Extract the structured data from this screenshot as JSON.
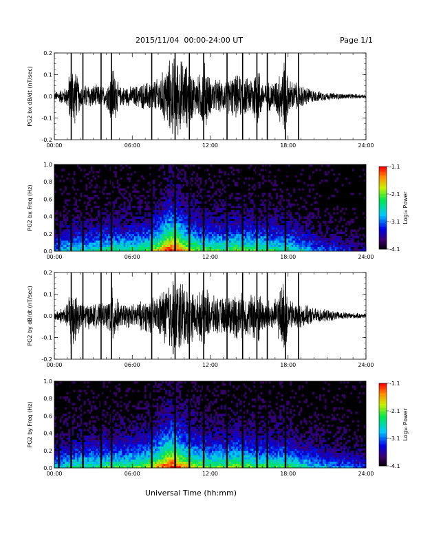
{
  "header": {
    "title": "2015/11/04  00:00-24:00 UT",
    "page": "Page 1/1"
  },
  "colors": {
    "trace": "#000000",
    "spectro_background": "#000000"
  },
  "chart_data": [
    {
      "type": "line",
      "name": "bx-waveform",
      "ylabel": "PG2 bx dB/dt (nT/sec)",
      "xlabel": "",
      "xlim": [
        0,
        24
      ],
      "ylim": [
        -0.2,
        0.2
      ],
      "x_ticks": [
        "00:00",
        "06:00",
        "12:00",
        "18:00",
        "24:00"
      ],
      "y_ticks": [
        "-0.2",
        "-0.1",
        "0.0",
        "0.1",
        "0.2"
      ],
      "y_tick_values": [
        -0.2,
        -0.1,
        0.0,
        0.1,
        0.2
      ],
      "envelope_hours": [
        0,
        1,
        1.3,
        2,
        3,
        4,
        4.5,
        5,
        6,
        7,
        8,
        8.5,
        9,
        9.5,
        10,
        11,
        11.6,
        12,
        13,
        14,
        15,
        15.7,
        16,
        17,
        17.8,
        18,
        19,
        20,
        21,
        22,
        23,
        24
      ],
      "envelope_amplitude": [
        0.02,
        0.05,
        0.19,
        0.06,
        0.06,
        0.05,
        0.17,
        0.05,
        0.05,
        0.07,
        0.09,
        0.14,
        0.2,
        0.2,
        0.18,
        0.09,
        0.18,
        0.09,
        0.08,
        0.11,
        0.09,
        0.17,
        0.07,
        0.08,
        0.2,
        0.09,
        0.06,
        0.03,
        0.02,
        0.015,
        0.012,
        0.01
      ],
      "spike_hours": [
        1.3,
        2.2,
        3.6,
        4.4,
        7.5,
        9.3,
        10.4,
        11.5,
        13.3,
        14.5,
        15.6,
        16.4,
        17.8,
        18.8
      ]
    },
    {
      "type": "heatmap",
      "name": "bx-spectrogram",
      "ylabel": "PG2 bx Freq (Hz)",
      "xlabel": "",
      "xlim": [
        0,
        24
      ],
      "ylim": [
        0,
        1
      ],
      "x_ticks": [
        "00:00",
        "06:00",
        "12:00",
        "18:00",
        "24:00"
      ],
      "y_ticks": [
        "0.0",
        "0.2",
        "0.4",
        "0.6",
        "0.8",
        "1.0"
      ],
      "y_tick_values": [
        0,
        0.2,
        0.4,
        0.6,
        0.8,
        1.0
      ],
      "colorbar_label": "Log₁₀ Power",
      "colorbar_ticks": [
        "-1.1",
        "-2.1",
        "-3.1",
        "-4.1"
      ],
      "colorbar_tick_values": [
        -1.1,
        -2.1,
        -3.1,
        -4.1
      ],
      "colorbar_range": [
        -4.1,
        -1.1
      ],
      "power_hours": [
        0,
        1,
        2,
        3,
        4,
        5,
        6,
        7,
        8,
        8.5,
        9,
        9.5,
        10,
        11,
        12,
        13,
        14,
        15,
        16,
        17,
        18,
        19,
        20,
        21,
        22,
        23,
        24
      ],
      "power_profile": [
        0.35,
        0.45,
        0.5,
        0.5,
        0.55,
        0.55,
        0.55,
        0.6,
        0.75,
        0.9,
        1.0,
        0.95,
        0.8,
        0.65,
        0.6,
        0.6,
        0.65,
        0.6,
        0.6,
        0.55,
        0.55,
        0.45,
        0.35,
        0.3,
        0.25,
        0.2,
        0.15
      ],
      "gap_hours": [
        0.35,
        1.3,
        2.2,
        3.6,
        4.4,
        7.5,
        9.3,
        10.4,
        11.5,
        13.3,
        14.5,
        15.6,
        16.4,
        17.8
      ]
    },
    {
      "type": "line",
      "name": "by-waveform",
      "ylabel": "PG2 by dB/dt (nT/sec)",
      "xlabel": "",
      "xlim": [
        0,
        24
      ],
      "ylim": [
        -0.2,
        0.2
      ],
      "x_ticks": [
        "00:00",
        "06:00",
        "12:00",
        "18:00",
        "24:00"
      ],
      "y_ticks": [
        "-0.2",
        "-0.1",
        "0.0",
        "0.1",
        "0.2"
      ],
      "y_tick_values": [
        -0.2,
        -0.1,
        0.0,
        0.1,
        0.2
      ],
      "envelope_hours": [
        0,
        1,
        1.3,
        2,
        3,
        4,
        4.5,
        5,
        6,
        7,
        8,
        8.5,
        9,
        9.5,
        10,
        11,
        11.6,
        12,
        13,
        14,
        15,
        15.7,
        16,
        17,
        17.8,
        18,
        19,
        20,
        21,
        22,
        23,
        24
      ],
      "envelope_amplitude": [
        0.02,
        0.06,
        0.19,
        0.07,
        0.06,
        0.06,
        0.15,
        0.06,
        0.06,
        0.08,
        0.1,
        0.15,
        0.2,
        0.2,
        0.17,
        0.1,
        0.17,
        0.1,
        0.09,
        0.12,
        0.1,
        0.16,
        0.08,
        0.08,
        0.2,
        0.08,
        0.06,
        0.04,
        0.03,
        0.02,
        0.015,
        0.012
      ],
      "spike_hours": [
        1.3,
        2.2,
        3.6,
        4.4,
        7.5,
        9.3,
        10.4,
        11.5,
        13.3,
        14.5,
        15.6,
        16.4,
        17.8,
        18.8
      ]
    },
    {
      "type": "heatmap",
      "name": "by-spectrogram",
      "ylabel": "PG2 by Freq (Hz)",
      "xlabel": "Universal Time (hh:mm)",
      "xlim": [
        0,
        24
      ],
      "ylim": [
        0,
        1
      ],
      "x_ticks": [
        "00:00",
        "06:00",
        "12:00",
        "18:00",
        "24:00"
      ],
      "y_ticks": [
        "0.0",
        "0.2",
        "0.4",
        "0.6",
        "0.8",
        "1.0"
      ],
      "y_tick_values": [
        0,
        0.2,
        0.4,
        0.6,
        0.8,
        1.0
      ],
      "colorbar_label": "Log₁₀ Power",
      "colorbar_ticks": [
        "-1.1",
        "-2.1",
        "-3.1",
        "-4.1"
      ],
      "colorbar_tick_values": [
        -1.1,
        -2.1,
        -3.1,
        -4.1
      ],
      "colorbar_range": [
        -4.1,
        -1.1
      ],
      "power_hours": [
        0,
        1,
        2,
        3,
        4,
        5,
        6,
        7,
        8,
        8.5,
        9,
        9.5,
        10,
        11,
        12,
        13,
        14,
        15,
        16,
        17,
        18,
        19,
        20,
        21,
        22,
        23,
        24
      ],
      "power_profile": [
        0.4,
        0.5,
        0.55,
        0.55,
        0.6,
        0.6,
        0.6,
        0.65,
        0.8,
        0.92,
        1.0,
        0.95,
        0.85,
        0.7,
        0.65,
        0.65,
        0.7,
        0.65,
        0.6,
        0.6,
        0.6,
        0.5,
        0.45,
        0.4,
        0.35,
        0.3,
        0.25
      ],
      "gap_hours": [
        0.35,
        1.3,
        2.2,
        3.6,
        4.4,
        7.5,
        9.3,
        10.4,
        11.5,
        13.3,
        14.5,
        15.6,
        16.4,
        17.8
      ]
    }
  ]
}
